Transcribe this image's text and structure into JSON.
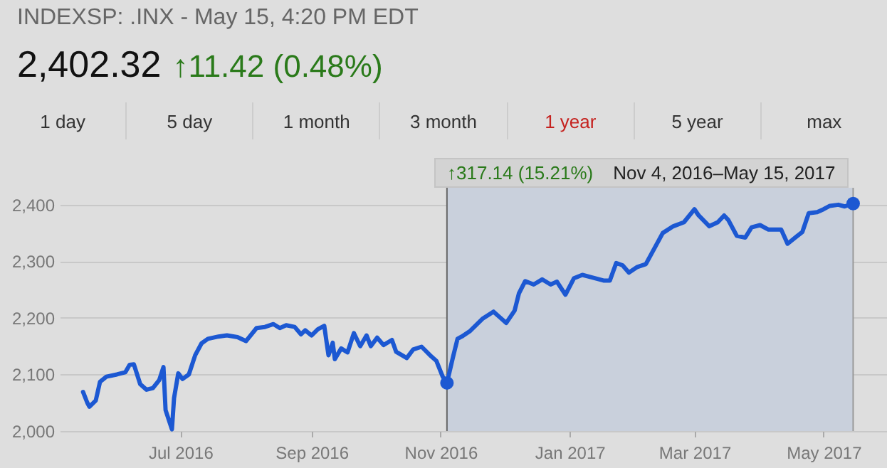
{
  "chart_data": {
    "type": "line",
    "title": "INDEXSP: .INX - May 15, 4:20 PM EDT",
    "subtitle": "2,402.32",
    "annotations": [
      "↑11.42 (0.48%)",
      "1 day",
      "5 day",
      "1 month",
      "3 month",
      "1 year",
      "5 year",
      "max",
      "↑317.14 (15.21%)"
    ],
    "xlim": [
      "2016-05-05",
      "2017-05-31"
    ],
    "xticks": [
      {
        "value": "2016-07-01",
        "label": "Jul 2016"
      },
      {
        "value": "2016-09-01",
        "label": "Sep 2016"
      },
      {
        "value": "2016-11-01",
        "label": "Nov 2016"
      },
      {
        "value": "2017-01-01",
        "label": "Jan 2017"
      },
      {
        "value": "2017-03-01",
        "label": "Mar 2017"
      },
      {
        "value": "2017-05-01",
        "label": "May 2017"
      }
    ],
    "ylim": [
      2000,
      2430
    ],
    "yticks": [
      {
        "value": 2000,
        "label": "2,000"
      },
      {
        "value": 2100,
        "label": "2,100"
      },
      {
        "value": 2200,
        "label": "2,200"
      },
      {
        "value": 2300,
        "label": "2,300"
      },
      {
        "value": 2400,
        "label": "2,400"
      }
    ],
    "grid": "y",
    "bands": [
      {
        "axis": "x",
        "from": "2016-11-04",
        "to": "2017-05-15",
        "label": "Nov 4, 2016–May 15, 2017",
        "color": "#c9d0dc"
      }
    ],
    "ref_lines": [
      {
        "axis": "x",
        "value": "2016-11-04",
        "color": "#666666"
      },
      {
        "axis": "x",
        "value": "2017-05-15",
        "color": "#999999"
      }
    ],
    "series": [
      {
        "type": "line",
        "color": "#1c58d2",
        "x": [
          "2016-05-16",
          "2016-05-18",
          "2016-05-19",
          "2016-05-22",
          "2016-05-24",
          "2016-05-27",
          "2016-06-01",
          "2016-06-05",
          "2016-06-07",
          "2016-06-09",
          "2016-06-12",
          "2016-06-15",
          "2016-06-18",
          "2016-06-21",
          "2016-06-23",
          "2016-06-24",
          "2016-06-27",
          "2016-06-28",
          "2016-06-30",
          "2016-07-02",
          "2016-07-05",
          "2016-07-08",
          "2016-07-11",
          "2016-07-14",
          "2016-07-19",
          "2016-07-23",
          "2016-07-28",
          "2016-08-01",
          "2016-08-06",
          "2016-08-10",
          "2016-08-14",
          "2016-08-17",
          "2016-08-20",
          "2016-08-24",
          "2016-08-27",
          "2016-08-29",
          "2016-09-01",
          "2016-09-04",
          "2016-09-07",
          "2016-09-09",
          "2016-09-11",
          "2016-09-12",
          "2016-09-15",
          "2016-09-18",
          "2016-09-21",
          "2016-09-24",
          "2016-09-27",
          "2016-09-29",
          "2016-10-02",
          "2016-10-05",
          "2016-10-09",
          "2016-10-11",
          "2016-10-16",
          "2016-10-19",
          "2016-10-23",
          "2016-10-27",
          "2016-10-30",
          "2016-11-02",
          "2016-11-04",
          "2016-11-07",
          "2016-11-09",
          "2016-11-11",
          "2016-11-15",
          "2016-11-18",
          "2016-11-21",
          "2016-11-26",
          "2016-11-29",
          "2016-12-02",
          "2016-12-06",
          "2016-12-08",
          "2016-12-11",
          "2016-12-15",
          "2016-12-19",
          "2016-12-23",
          "2016-12-26",
          "2016-12-30",
          "2017-01-03",
          "2017-01-07",
          "2017-01-11",
          "2017-01-17",
          "2017-01-20",
          "2017-01-23",
          "2017-01-26",
          "2017-01-29",
          "2017-02-02",
          "2017-02-06",
          "2017-02-14",
          "2017-02-19",
          "2017-02-24",
          "2017-03-01",
          "2017-03-03",
          "2017-03-08",
          "2017-03-12",
          "2017-03-15",
          "2017-03-17",
          "2017-03-21",
          "2017-03-25",
          "2017-03-28",
          "2017-04-01",
          "2017-04-05",
          "2017-04-11",
          "2017-04-14",
          "2017-04-18",
          "2017-04-21",
          "2017-04-24",
          "2017-04-28",
          "2017-05-01",
          "2017-05-04",
          "2017-05-08",
          "2017-05-11",
          "2017-05-15"
        ],
        "values": [
          2069,
          2050,
          2043,
          2054,
          2087,
          2096,
          2100,
          2104,
          2117,
          2118,
          2083,
          2073,
          2076,
          2090,
          2113,
          2037,
          2003,
          2058,
          2102,
          2092,
          2100,
          2134,
          2155,
          2163,
          2167,
          2169,
          2166,
          2159,
          2182,
          2184,
          2189,
          2182,
          2187,
          2184,
          2171,
          2178,
          2169,
          2180,
          2186,
          2134,
          2156,
          2127,
          2146,
          2139,
          2173,
          2150,
          2169,
          2150,
          2165,
          2152,
          2161,
          2140,
          2129,
          2144,
          2149,
          2134,
          2124,
          2096,
          2085,
          2133,
          2163,
          2167,
          2177,
          2188,
          2199,
          2211,
          2201,
          2191,
          2213,
          2243,
          2265,
          2259,
          2268,
          2259,
          2264,
          2241,
          2270,
          2276,
          2272,
          2266,
          2266,
          2297,
          2293,
          2280,
          2290,
          2295,
          2350,
          2362,
          2369,
          2392,
          2381,
          2362,
          2369,
          2381,
          2373,
          2345,
          2342,
          2360,
          2364,
          2356,
          2356,
          2331,
          2343,
          2352,
          2385,
          2387,
          2392,
          2398,
          2400,
          2397,
          2402
        ]
      },
      {
        "type": "scatter",
        "color": "#1c58d2",
        "marker": "circle",
        "x": [
          "2016-11-04",
          "2017-05-15"
        ],
        "values": [
          2085,
          2402
        ]
      }
    ]
  }
}
